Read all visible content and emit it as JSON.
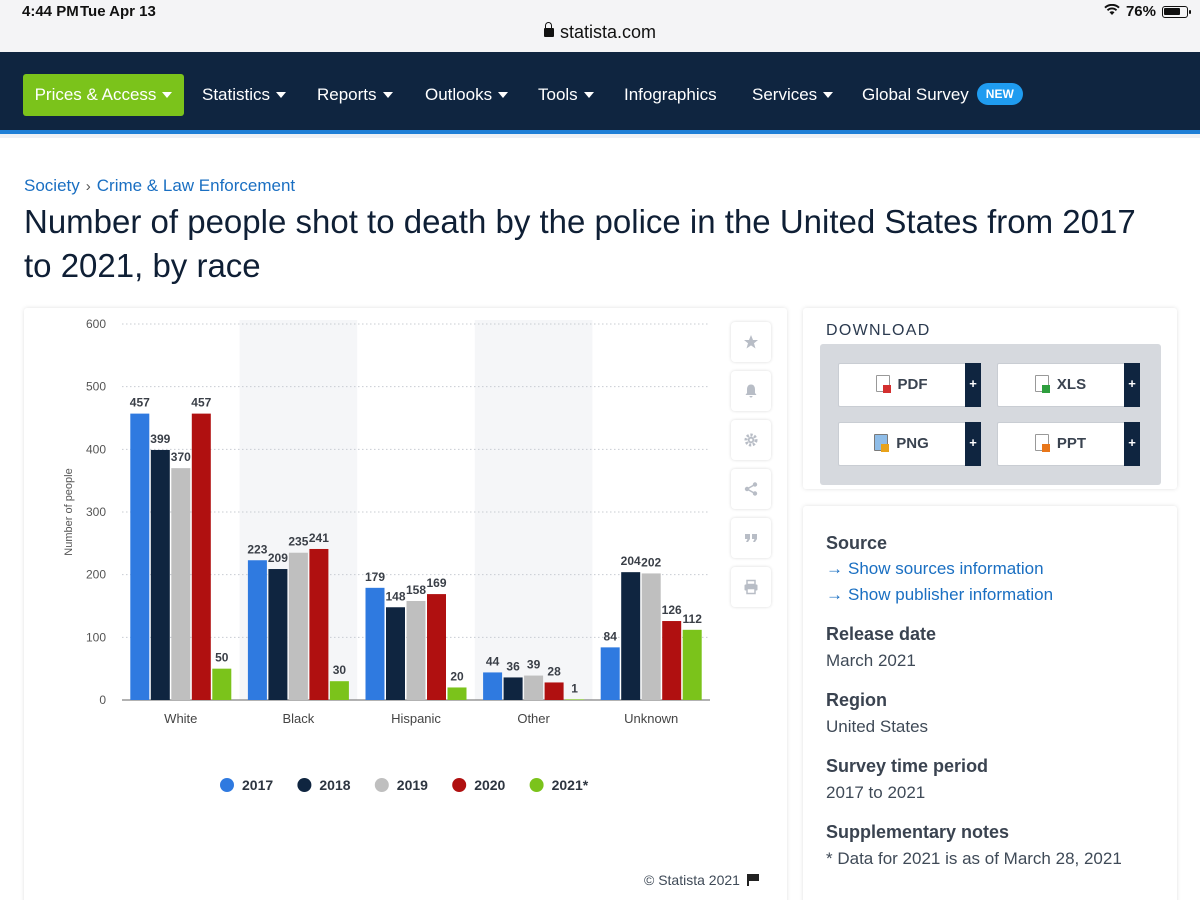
{
  "status_bar": {
    "time": "4:44 PM",
    "date": "Tue Apr 13",
    "battery": "76%",
    "battery_level": 0.76,
    "url": "statista.com"
  },
  "nav": {
    "items": [
      {
        "label": "Prices & Access",
        "dropdown": true
      },
      {
        "label": "Statistics",
        "dropdown": true
      },
      {
        "label": "Reports",
        "dropdown": true
      },
      {
        "label": "Outlooks",
        "dropdown": true
      },
      {
        "label": "Tools",
        "dropdown": true
      },
      {
        "label": "Infographics",
        "dropdown": false
      },
      {
        "label": "Services",
        "dropdown": true
      },
      {
        "label": "Global Survey",
        "dropdown": false,
        "badge": "NEW"
      }
    ],
    "colors": {
      "bar": "#0f2540",
      "primary": "#7bc31b",
      "badge": "#1f9cf0"
    }
  },
  "breadcrumb": {
    "items": [
      "Society",
      "Crime & Law Enforcement"
    ],
    "separator": "›"
  },
  "page_title": "Number of people shot to death by the police in the United States from 2017 to 2021, by race",
  "chart_data": {
    "type": "bar",
    "categories": [
      "White",
      "Black",
      "Hispanic",
      "Other",
      "Unknown"
    ],
    "series": [
      {
        "name": "2017",
        "color": "#2f7ae0",
        "values": [
          457,
          223,
          179,
          44,
          84
        ]
      },
      {
        "name": "2018",
        "color": "#0f2540",
        "values": [
          399,
          209,
          148,
          36,
          204
        ]
      },
      {
        "name": "2019",
        "color": "#bfbfbf",
        "values": [
          370,
          235,
          158,
          39,
          202
        ]
      },
      {
        "name": "2020",
        "color": "#b01010",
        "values": [
          457,
          241,
          169,
          28,
          126
        ]
      },
      {
        "name": "2021*",
        "color": "#7bc31b",
        "values": [
          50,
          30,
          20,
          1,
          112
        ]
      }
    ],
    "ylabel": "Number of people",
    "ylim": [
      0,
      600
    ],
    "yticks": [
      0,
      100,
      200,
      300,
      400,
      500,
      600
    ],
    "grid": true,
    "legend": "bottom",
    "data_labels": true
  },
  "chart_tools": [
    "star-icon",
    "bell-icon",
    "gear-icon",
    "share-icon",
    "quote-icon",
    "print-icon"
  ],
  "copyright": "© Statista 2021",
  "download": {
    "title": "DOWNLOAD",
    "buttons": [
      {
        "label": "PDF",
        "icon": "pdf-file-icon"
      },
      {
        "label": "XLS",
        "icon": "xls-file-icon"
      },
      {
        "label": "PNG",
        "icon": "png-file-icon"
      },
      {
        "label": "PPT",
        "icon": "ppt-file-icon"
      }
    ],
    "plus": "+"
  },
  "info": {
    "source_label": "Source",
    "source_links": [
      "Show sources information",
      "Show publisher information"
    ],
    "release_label": "Release date",
    "release_value": "March 2021",
    "region_label": "Region",
    "region_value": "United States",
    "period_label": "Survey time period",
    "period_value": "2017 to 2021",
    "notes_label": "Supplementary notes",
    "notes_value": "* Data for 2021 is as of March 28, 2021"
  }
}
